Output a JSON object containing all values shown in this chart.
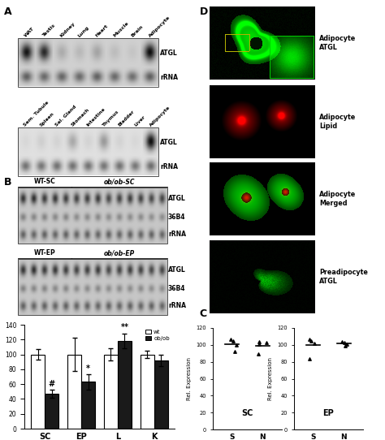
{
  "panel_A_labels1": [
    "WAT",
    "Testis",
    "Kidney",
    "Lung",
    "Heart",
    "Muscle",
    "Brain",
    "Adipocyte"
  ],
  "panel_A_labels2": [
    "Sem. Tubule",
    "Spleen",
    "Sal. Gland",
    "Stomach",
    "Intestine",
    "Thymus",
    "Bladder",
    "Liver",
    "Adipocyte"
  ],
  "atgl_row1": [
    0.92,
    0.82,
    0.18,
    0.12,
    0.22,
    0.1,
    0.06,
    0.96
  ],
  "rrna_row1": [
    0.55,
    0.5,
    0.52,
    0.5,
    0.54,
    0.5,
    0.48,
    0.55
  ],
  "atgl_row2": [
    0.04,
    0.08,
    0.06,
    0.25,
    0.06,
    0.32,
    0.06,
    0.04,
    0.96
  ],
  "rrna_row2": [
    0.5,
    0.48,
    0.5,
    0.5,
    0.5,
    0.48,
    0.5,
    0.48,
    0.52
  ],
  "atgl_b1": [
    0.75,
    0.78,
    0.72,
    0.74,
    0.7,
    0.68,
    0.7,
    0.72,
    0.65,
    0.68,
    0.7,
    0.68,
    0.65,
    0.67
  ],
  "b4_b1": [
    0.35,
    0.33,
    0.34,
    0.32,
    0.33,
    0.3,
    0.31,
    0.32,
    0.3,
    0.31,
    0.3,
    0.31,
    0.29,
    0.3
  ],
  "rrna_b1": [
    0.52,
    0.5,
    0.52,
    0.5,
    0.52,
    0.5,
    0.52,
    0.5,
    0.52,
    0.5,
    0.52,
    0.5,
    0.52,
    0.5
  ],
  "atgl_b2": [
    0.75,
    0.78,
    0.72,
    0.74,
    0.7,
    0.68,
    0.7,
    0.72,
    0.65,
    0.68,
    0.7,
    0.68,
    0.65,
    0.67
  ],
  "b4_b2": [
    0.35,
    0.33,
    0.34,
    0.32,
    0.33,
    0.3,
    0.31,
    0.32,
    0.3,
    0.31,
    0.3,
    0.31,
    0.29,
    0.3
  ],
  "rrna_b2": [
    0.52,
    0.5,
    0.52,
    0.5,
    0.52,
    0.5,
    0.52,
    0.5,
    0.52,
    0.5,
    0.52,
    0.5,
    0.52,
    0.5
  ],
  "bar_categories": [
    "SC",
    "EP",
    "L",
    "K"
  ],
  "wt_values": [
    100,
    100,
    100,
    100
  ],
  "obob_values": [
    47,
    63,
    118,
    92
  ],
  "wt_errors": [
    7,
    22,
    8,
    5
  ],
  "obob_errors": [
    5,
    10,
    10,
    8
  ],
  "wt_color": "#ffffff",
  "obob_color": "#1a1a1a",
  "scatter_SC_S": [
    107,
    100,
    92,
    105
  ],
  "scatter_SC_N": [
    104,
    101,
    89,
    103
  ],
  "scatter_EP_S": [
    107,
    102,
    84,
    105
  ],
  "scatter_EP_N": [
    104,
    101,
    99,
    103
  ],
  "scatter_SC_S_mean": 101,
  "scatter_SC_N_mean": 99,
  "scatter_EP_S_mean": 100,
  "scatter_EP_N_mean": 102,
  "bg_color": "#ffffff"
}
